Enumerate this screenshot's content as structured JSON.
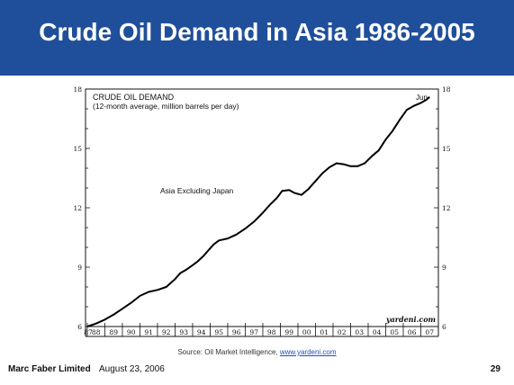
{
  "slide": {
    "title": "Crude Oil Demand in Asia 1986-2005",
    "source_prefix": "Source: Oil Market Intelligence, ",
    "source_link": "www.yardeni.com",
    "footer_company": "Marc Faber Limited",
    "footer_date": "August 23, 2006",
    "page_number": "29"
  },
  "colors": {
    "banner": "#1f4f9a",
    "line": "#000000"
  },
  "chart_data": {
    "type": "line",
    "title_line1": "CRUDE OIL DEMAND",
    "title_line2": "(12-month average, million barrels per day)",
    "series": [
      {
        "name": "Asia Excluding Japan",
        "x": [
          1987.0,
          1987.5,
          1988.0,
          1988.5,
          1989.0,
          1989.5,
          1990.0,
          1990.5,
          1991.0,
          1991.5,
          1992.0,
          1992.3,
          1992.6,
          1993.0,
          1993.3,
          1993.6,
          1994.0,
          1994.2,
          1994.5,
          1995.0,
          1995.5,
          1996.0,
          1996.5,
          1997.0,
          1997.4,
          1997.8,
          1998.1,
          1998.5,
          1998.8,
          1999.2,
          1999.6,
          2000.0,
          2000.4,
          2000.8,
          2001.2,
          2001.6,
          2002.0,
          2002.4,
          2002.8,
          2003.2,
          2003.6,
          2004.0,
          2004.4,
          2004.8,
          2005.2,
          2005.6,
          2006.0,
          2006.3,
          2006.5
        ],
        "y": [
          6.0,
          6.15,
          6.35,
          6.6,
          6.9,
          7.2,
          7.55,
          7.75,
          7.85,
          8.0,
          8.4,
          8.7,
          8.85,
          9.1,
          9.3,
          9.55,
          9.95,
          10.15,
          10.35,
          10.45,
          10.65,
          10.95,
          11.3,
          11.75,
          12.15,
          12.5,
          12.85,
          12.9,
          12.75,
          12.65,
          12.95,
          13.35,
          13.75,
          14.05,
          14.25,
          14.2,
          14.1,
          14.1,
          14.25,
          14.6,
          14.9,
          15.45,
          15.9,
          16.45,
          16.95,
          17.15,
          17.3,
          17.45,
          17.6
        ]
      }
    ],
    "annotation_end": "Jun",
    "watermark": "yardeni.com",
    "ylim": [
      6,
      18
    ],
    "y_ticks_left": [
      "18",
      "15",
      "12",
      "9",
      "6"
    ],
    "y_ticks_right": [
      "18",
      "15",
      "12",
      "9",
      "6"
    ],
    "y_tick_values": [
      18,
      15,
      12,
      9,
      6
    ],
    "xlim": [
      1986.9,
      2007.0
    ],
    "x_tick_labels": [
      "87",
      "88",
      "89",
      "90",
      "91",
      "92",
      "93",
      "94",
      "95",
      "96",
      "97",
      "98",
      "99",
      "00",
      "01",
      "02",
      "03",
      "04",
      "05",
      "06",
      "07"
    ],
    "x_tick_years": [
      1987,
      1988,
      1989,
      1990,
      1991,
      1992,
      1993,
      1994,
      1995,
      1996,
      1997,
      1998,
      1999,
      2000,
      2001,
      2002,
      2003,
      2004,
      2005,
      2006,
      2007
    ],
    "grid": false,
    "legend": "none"
  }
}
